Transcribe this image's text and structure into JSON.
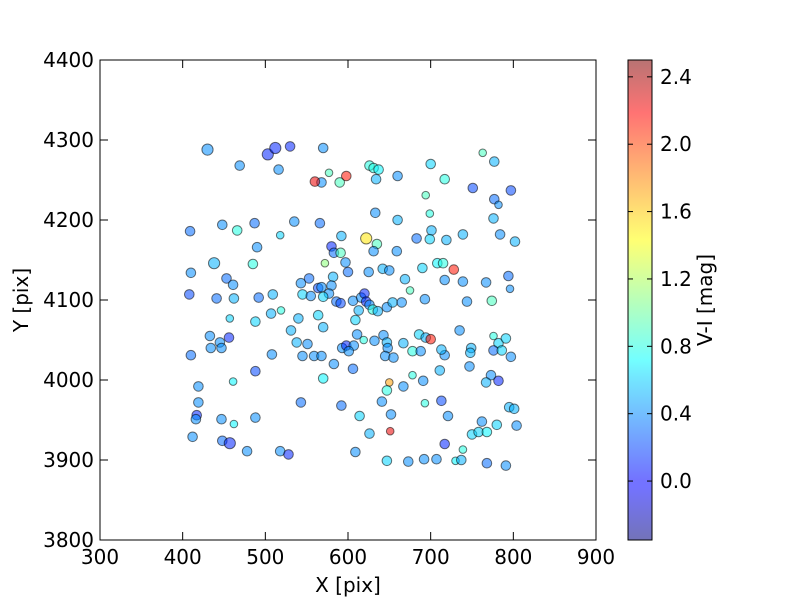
{
  "chart_data": {
    "type": "scatter",
    "title": "",
    "xlabel": "X [pix]",
    "ylabel": "Y [pix]",
    "xlim": [
      300,
      900
    ],
    "ylim": [
      3800,
      4400
    ],
    "xticks": [
      300,
      400,
      500,
      600,
      700,
      800,
      900
    ],
    "yticks": [
      3800,
      3900,
      4000,
      4100,
      4200,
      4300,
      4400
    ],
    "colorbar": {
      "label": "V-I [mag]",
      "range": [
        -0.35,
        2.5
      ],
      "ticks": [
        0.0,
        0.4,
        0.8,
        1.2,
        1.6,
        2.0,
        2.4
      ],
      "tick_labels": [
        "0.0",
        "0.4",
        "0.8",
        "1.2",
        "1.6",
        "2.0",
        "2.4"
      ],
      "colormap": "jet",
      "alpha": 0.55
    },
    "grid": false,
    "points": [
      {
        "x": 430,
        "y": 4288,
        "c": 0.4,
        "s": "l"
      },
      {
        "x": 469,
        "y": 4268,
        "c": 0.4,
        "s": "m"
      },
      {
        "x": 503,
        "y": 4282,
        "c": 0.1,
        "s": "l"
      },
      {
        "x": 512,
        "y": 4290,
        "c": 0.1,
        "s": "l"
      },
      {
        "x": 530,
        "y": 4292,
        "c": 0.1,
        "s": "m"
      },
      {
        "x": 516,
        "y": 4263,
        "c": 0.4,
        "s": "m"
      },
      {
        "x": 570,
        "y": 4290,
        "c": 0.4,
        "s": "m"
      },
      {
        "x": 568,
        "y": 4247,
        "c": 0.4,
        "s": "m"
      },
      {
        "x": 560,
        "y": 4248,
        "c": 2.2,
        "s": "m"
      },
      {
        "x": 577,
        "y": 4259,
        "c": 0.9,
        "s": "s"
      },
      {
        "x": 590,
        "y": 4247,
        "c": 0.9,
        "s": "m"
      },
      {
        "x": 598,
        "y": 4255,
        "c": 2.1,
        "s": "m"
      },
      {
        "x": 626,
        "y": 4268,
        "c": 0.8,
        "s": "m"
      },
      {
        "x": 631,
        "y": 4265,
        "c": 0.8,
        "s": "m"
      },
      {
        "x": 637,
        "y": 4263,
        "c": 0.7,
        "s": "m"
      },
      {
        "x": 634,
        "y": 4251,
        "c": 0.5,
        "s": "m"
      },
      {
        "x": 660,
        "y": 4255,
        "c": 0.4,
        "s": "m"
      },
      {
        "x": 700,
        "y": 4270,
        "c": 0.6,
        "s": "m"
      },
      {
        "x": 717,
        "y": 4251,
        "c": 0.8,
        "s": "m"
      },
      {
        "x": 763,
        "y": 4284,
        "c": 0.9,
        "s": "s"
      },
      {
        "x": 777,
        "y": 4273,
        "c": 0.5,
        "s": "m"
      },
      {
        "x": 751,
        "y": 4240,
        "c": 0.2,
        "s": "m"
      },
      {
        "x": 777,
        "y": 4226,
        "c": 0.3,
        "s": "m"
      },
      {
        "x": 782,
        "y": 4219,
        "c": 0.4,
        "s": "s"
      },
      {
        "x": 797,
        "y": 4237,
        "c": 0.2,
        "s": "m"
      },
      {
        "x": 694,
        "y": 4231,
        "c": 0.9,
        "s": "s"
      },
      {
        "x": 699,
        "y": 4208,
        "c": 0.8,
        "s": "s"
      },
      {
        "x": 776,
        "y": 4202,
        "c": 0.5,
        "s": "m"
      },
      {
        "x": 409,
        "y": 4186,
        "c": 0.3,
        "s": "m"
      },
      {
        "x": 448,
        "y": 4194,
        "c": 0.4,
        "s": "m"
      },
      {
        "x": 466,
        "y": 4187,
        "c": 0.8,
        "s": "m"
      },
      {
        "x": 487,
        "y": 4196,
        "c": 0.3,
        "s": "m"
      },
      {
        "x": 518,
        "y": 4181,
        "c": 0.6,
        "s": "s"
      },
      {
        "x": 535,
        "y": 4198,
        "c": 0.4,
        "s": "m"
      },
      {
        "x": 566,
        "y": 4196,
        "c": 0.3,
        "s": "m"
      },
      {
        "x": 592,
        "y": 4180,
        "c": 0.5,
        "s": "m"
      },
      {
        "x": 633,
        "y": 4209,
        "c": 0.4,
        "s": "m"
      },
      {
        "x": 660,
        "y": 4200,
        "c": 0.5,
        "s": "m"
      },
      {
        "x": 622,
        "y": 4177,
        "c": 1.5,
        "s": "l"
      },
      {
        "x": 635,
        "y": 4170,
        "c": 0.9,
        "s": "m"
      },
      {
        "x": 631,
        "y": 4161,
        "c": 0.4,
        "s": "m"
      },
      {
        "x": 659,
        "y": 4161,
        "c": 0.4,
        "s": "m"
      },
      {
        "x": 683,
        "y": 4177,
        "c": 0.3,
        "s": "m"
      },
      {
        "x": 701,
        "y": 4187,
        "c": 0.5,
        "s": "m"
      },
      {
        "x": 699,
        "y": 4176,
        "c": 0.6,
        "s": "m"
      },
      {
        "x": 719,
        "y": 4175,
        "c": 0.5,
        "s": "m"
      },
      {
        "x": 739,
        "y": 4182,
        "c": 0.5,
        "s": "m"
      },
      {
        "x": 784,
        "y": 4182,
        "c": 0.4,
        "s": "m"
      },
      {
        "x": 802,
        "y": 4173,
        "c": 0.5,
        "s": "m"
      },
      {
        "x": 490,
        "y": 4166,
        "c": 0.4,
        "s": "m"
      },
      {
        "x": 580,
        "y": 4167,
        "c": 0.1,
        "s": "m"
      },
      {
        "x": 583,
        "y": 4159,
        "c": 0.3,
        "s": "m"
      },
      {
        "x": 591,
        "y": 4159,
        "c": 0.9,
        "s": "m"
      },
      {
        "x": 597,
        "y": 4147,
        "c": 0.4,
        "s": "m"
      },
      {
        "x": 572,
        "y": 4146,
        "c": 1.1,
        "s": "s"
      },
      {
        "x": 438,
        "y": 4146,
        "c": 0.5,
        "s": "l"
      },
      {
        "x": 485,
        "y": 4145,
        "c": 0.8,
        "s": "m"
      },
      {
        "x": 410,
        "y": 4134,
        "c": 0.4,
        "s": "m"
      },
      {
        "x": 453,
        "y": 4127,
        "c": 0.3,
        "s": "m"
      },
      {
        "x": 461,
        "y": 4119,
        "c": 0.4,
        "s": "m"
      },
      {
        "x": 543,
        "y": 4121,
        "c": 0.4,
        "s": "m"
      },
      {
        "x": 553,
        "y": 4127,
        "c": 0.3,
        "s": "m"
      },
      {
        "x": 564,
        "y": 4115,
        "c": 0.2,
        "s": "m"
      },
      {
        "x": 568,
        "y": 4116,
        "c": 0.4,
        "s": "m"
      },
      {
        "x": 582,
        "y": 4129,
        "c": 0.5,
        "s": "m"
      },
      {
        "x": 580,
        "y": 4118,
        "c": 0.4,
        "s": "m"
      },
      {
        "x": 577,
        "y": 4108,
        "c": 0.4,
        "s": "m"
      },
      {
        "x": 600,
        "y": 4135,
        "c": 0.3,
        "s": "m"
      },
      {
        "x": 625,
        "y": 4135,
        "c": 0.4,
        "s": "m"
      },
      {
        "x": 642,
        "y": 4139,
        "c": 0.5,
        "s": "m"
      },
      {
        "x": 650,
        "y": 4137,
        "c": 0.4,
        "s": "m"
      },
      {
        "x": 669,
        "y": 4126,
        "c": 0.5,
        "s": "m"
      },
      {
        "x": 690,
        "y": 4140,
        "c": 0.6,
        "s": "m"
      },
      {
        "x": 708,
        "y": 4146,
        "c": 0.7,
        "s": "m"
      },
      {
        "x": 715,
        "y": 4146,
        "c": 0.8,
        "s": "m"
      },
      {
        "x": 728,
        "y": 4138,
        "c": 2.1,
        "s": "m"
      },
      {
        "x": 717,
        "y": 4125,
        "c": 0.4,
        "s": "m"
      },
      {
        "x": 739,
        "y": 4123,
        "c": 0.4,
        "s": "m"
      },
      {
        "x": 767,
        "y": 4122,
        "c": 0.4,
        "s": "m"
      },
      {
        "x": 794,
        "y": 4130,
        "c": 0.3,
        "s": "m"
      },
      {
        "x": 796,
        "y": 4114,
        "c": 0.4,
        "s": "s"
      },
      {
        "x": 675,
        "y": 4112,
        "c": 0.9,
        "s": "s"
      },
      {
        "x": 408,
        "y": 4107,
        "c": 0.2,
        "s": "m"
      },
      {
        "x": 441,
        "y": 4102,
        "c": 0.3,
        "s": "m"
      },
      {
        "x": 462,
        "y": 4102,
        "c": 0.5,
        "s": "m"
      },
      {
        "x": 492,
        "y": 4103,
        "c": 0.3,
        "s": "m"
      },
      {
        "x": 509,
        "y": 4107,
        "c": 0.5,
        "s": "m"
      },
      {
        "x": 545,
        "y": 4107,
        "c": 0.6,
        "s": "m"
      },
      {
        "x": 555,
        "y": 4105,
        "c": 0.4,
        "s": "m"
      },
      {
        "x": 570,
        "y": 4104,
        "c": 0.6,
        "s": "m"
      },
      {
        "x": 586,
        "y": 4098,
        "c": 0.3,
        "s": "m"
      },
      {
        "x": 591,
        "y": 4096,
        "c": 0.2,
        "s": "m"
      },
      {
        "x": 606,
        "y": 4099,
        "c": 0.4,
        "s": "m"
      },
      {
        "x": 616,
        "y": 4103,
        "c": 0.4,
        "s": "m"
      },
      {
        "x": 620,
        "y": 4108,
        "c": 0.1,
        "s": "m"
      },
      {
        "x": 622,
        "y": 4098,
        "c": 0.1,
        "s": "m"
      },
      {
        "x": 626,
        "y": 4094,
        "c": 0.4,
        "s": "m"
      },
      {
        "x": 630,
        "y": 4088,
        "c": 0.8,
        "s": "m"
      },
      {
        "x": 636,
        "y": 4086,
        "c": 0.5,
        "s": "m"
      },
      {
        "x": 647,
        "y": 4091,
        "c": 0.4,
        "s": "m"
      },
      {
        "x": 654,
        "y": 4097,
        "c": 0.5,
        "s": "m"
      },
      {
        "x": 665,
        "y": 4097,
        "c": 0.4,
        "s": "m"
      },
      {
        "x": 693,
        "y": 4101,
        "c": 0.4,
        "s": "m"
      },
      {
        "x": 744,
        "y": 4098,
        "c": 0.4,
        "s": "m"
      },
      {
        "x": 774,
        "y": 4099,
        "c": 0.9,
        "s": "m"
      },
      {
        "x": 457,
        "y": 4077,
        "c": 0.6,
        "s": "s"
      },
      {
        "x": 488,
        "y": 4073,
        "c": 0.6,
        "s": "m"
      },
      {
        "x": 507,
        "y": 4083,
        "c": 0.5,
        "s": "m"
      },
      {
        "x": 519,
        "y": 4087,
        "c": 0.8,
        "s": "s"
      },
      {
        "x": 540,
        "y": 4077,
        "c": 0.5,
        "s": "m"
      },
      {
        "x": 564,
        "y": 4081,
        "c": 0.6,
        "s": "m"
      },
      {
        "x": 570,
        "y": 4066,
        "c": 0.5,
        "s": "m"
      },
      {
        "x": 609,
        "y": 4075,
        "c": 0.6,
        "s": "m"
      },
      {
        "x": 611,
        "y": 4057,
        "c": 0.4,
        "s": "m"
      },
      {
        "x": 619,
        "y": 4050,
        "c": 0.8,
        "s": "s"
      },
      {
        "x": 613,
        "y": 4087,
        "c": 0.5,
        "s": "m"
      },
      {
        "x": 433,
        "y": 4055,
        "c": 0.4,
        "s": "m"
      },
      {
        "x": 456,
        "y": 4053,
        "c": 0.1,
        "s": "m"
      },
      {
        "x": 445,
        "y": 4047,
        "c": 0.4,
        "s": "m"
      },
      {
        "x": 447,
        "y": 4040,
        "c": 0.4,
        "s": "m"
      },
      {
        "x": 434,
        "y": 4040,
        "c": 0.4,
        "s": "m"
      },
      {
        "x": 410,
        "y": 4031,
        "c": 0.3,
        "s": "m"
      },
      {
        "x": 531,
        "y": 4062,
        "c": 0.5,
        "s": "m"
      },
      {
        "x": 538,
        "y": 4047,
        "c": 0.5,
        "s": "m"
      },
      {
        "x": 551,
        "y": 4045,
        "c": 0.4,
        "s": "m"
      },
      {
        "x": 545,
        "y": 4030,
        "c": 0.4,
        "s": "m"
      },
      {
        "x": 559,
        "y": 4030,
        "c": 0.4,
        "s": "m"
      },
      {
        "x": 568,
        "y": 4030,
        "c": 0.4,
        "s": "m"
      },
      {
        "x": 508,
        "y": 4032,
        "c": 0.4,
        "s": "m"
      },
      {
        "x": 593,
        "y": 4040,
        "c": 0.4,
        "s": "m"
      },
      {
        "x": 598,
        "y": 4043,
        "c": 0.1,
        "s": "m"
      },
      {
        "x": 607,
        "y": 4043,
        "c": 0.4,
        "s": "m"
      },
      {
        "x": 601,
        "y": 4036,
        "c": 0.4,
        "s": "m"
      },
      {
        "x": 632,
        "y": 4049,
        "c": 0.4,
        "s": "m"
      },
      {
        "x": 643,
        "y": 4056,
        "c": 0.4,
        "s": "m"
      },
      {
        "x": 647,
        "y": 4047,
        "c": 0.5,
        "s": "m"
      },
      {
        "x": 648,
        "y": 4040,
        "c": 0.4,
        "s": "m"
      },
      {
        "x": 667,
        "y": 4046,
        "c": 0.5,
        "s": "m"
      },
      {
        "x": 686,
        "y": 4057,
        "c": 0.6,
        "s": "m"
      },
      {
        "x": 694,
        "y": 4053,
        "c": 0.5,
        "s": "m"
      },
      {
        "x": 700,
        "y": 4051,
        "c": 2.1,
        "s": "m"
      },
      {
        "x": 678,
        "y": 4036,
        "c": 0.8,
        "s": "m"
      },
      {
        "x": 688,
        "y": 4036,
        "c": 0.4,
        "s": "m"
      },
      {
        "x": 645,
        "y": 4030,
        "c": 0.4,
        "s": "m"
      },
      {
        "x": 655,
        "y": 4028,
        "c": 0.4,
        "s": "m"
      },
      {
        "x": 717,
        "y": 4031,
        "c": 0.4,
        "s": "m"
      },
      {
        "x": 713,
        "y": 4038,
        "c": 0.5,
        "s": "m"
      },
      {
        "x": 735,
        "y": 4062,
        "c": 0.4,
        "s": "m"
      },
      {
        "x": 749,
        "y": 4040,
        "c": 0.5,
        "s": "m"
      },
      {
        "x": 748,
        "y": 4034,
        "c": 0.5,
        "s": "m"
      },
      {
        "x": 776,
        "y": 4055,
        "c": 0.8,
        "s": "s"
      },
      {
        "x": 782,
        "y": 4046,
        "c": 0.6,
        "s": "m"
      },
      {
        "x": 776,
        "y": 4037,
        "c": 0.3,
        "s": "m"
      },
      {
        "x": 786,
        "y": 4037,
        "c": 0.6,
        "s": "m"
      },
      {
        "x": 791,
        "y": 4052,
        "c": 0.6,
        "s": "m"
      },
      {
        "x": 797,
        "y": 4029,
        "c": 0.4,
        "s": "m"
      },
      {
        "x": 488,
        "y": 4011,
        "c": 0.2,
        "s": "m"
      },
      {
        "x": 583,
        "y": 4020,
        "c": 0.4,
        "s": "m"
      },
      {
        "x": 606,
        "y": 4014,
        "c": 0.3,
        "s": "m"
      },
      {
        "x": 570,
        "y": 4002,
        "c": 0.7,
        "s": "m"
      },
      {
        "x": 678,
        "y": 4006,
        "c": 0.8,
        "s": "s"
      },
      {
        "x": 711,
        "y": 4012,
        "c": 0.5,
        "s": "m"
      },
      {
        "x": 747,
        "y": 4017,
        "c": 0.4,
        "s": "m"
      },
      {
        "x": 773,
        "y": 4006,
        "c": 0.4,
        "s": "m"
      },
      {
        "x": 767,
        "y": 3997,
        "c": 0.5,
        "s": "m"
      },
      {
        "x": 782,
        "y": 3999,
        "c": 0.1,
        "s": "m"
      },
      {
        "x": 419,
        "y": 3992,
        "c": 0.4,
        "s": "m"
      },
      {
        "x": 461,
        "y": 3998,
        "c": 0.7,
        "s": "s"
      },
      {
        "x": 650,
        "y": 3997,
        "c": 1.7,
        "s": "s"
      },
      {
        "x": 647,
        "y": 3987,
        "c": 0.8,
        "s": "m"
      },
      {
        "x": 667,
        "y": 3992,
        "c": 0.4,
        "s": "m"
      },
      {
        "x": 691,
        "y": 3999,
        "c": 0.4,
        "s": "m"
      },
      {
        "x": 419,
        "y": 3972,
        "c": 0.4,
        "s": "m"
      },
      {
        "x": 543,
        "y": 3972,
        "c": 0.3,
        "s": "m"
      },
      {
        "x": 592,
        "y": 3968,
        "c": 0.3,
        "s": "m"
      },
      {
        "x": 641,
        "y": 3973,
        "c": 0.4,
        "s": "m"
      },
      {
        "x": 693,
        "y": 3971,
        "c": 0.8,
        "s": "s"
      },
      {
        "x": 713,
        "y": 3974,
        "c": 0.2,
        "s": "m"
      },
      {
        "x": 795,
        "y": 3966,
        "c": 0.5,
        "s": "m"
      },
      {
        "x": 801,
        "y": 3964,
        "c": 0.5,
        "s": "m"
      },
      {
        "x": 417,
        "y": 3956,
        "c": 0.1,
        "s": "m"
      },
      {
        "x": 416,
        "y": 3951,
        "c": 0.4,
        "s": "m"
      },
      {
        "x": 447,
        "y": 3951,
        "c": 0.4,
        "s": "m"
      },
      {
        "x": 462,
        "y": 3945,
        "c": 0.7,
        "s": "s"
      },
      {
        "x": 488,
        "y": 3953,
        "c": 0.4,
        "s": "m"
      },
      {
        "x": 614,
        "y": 3955,
        "c": 0.6,
        "s": "m"
      },
      {
        "x": 652,
        "y": 3957,
        "c": 0.4,
        "s": "m"
      },
      {
        "x": 721,
        "y": 3955,
        "c": 0.4,
        "s": "m"
      },
      {
        "x": 762,
        "y": 3948,
        "c": 0.4,
        "s": "m"
      },
      {
        "x": 780,
        "y": 3944,
        "c": 0.6,
        "s": "m"
      },
      {
        "x": 804,
        "y": 3943,
        "c": 0.4,
        "s": "m"
      },
      {
        "x": 412,
        "y": 3929,
        "c": 0.4,
        "s": "m"
      },
      {
        "x": 448,
        "y": 3924,
        "c": 0.3,
        "s": "m"
      },
      {
        "x": 457,
        "y": 3921,
        "c": 0.1,
        "s": "l"
      },
      {
        "x": 626,
        "y": 3933,
        "c": 0.5,
        "s": "m"
      },
      {
        "x": 651,
        "y": 3936,
        "c": 2.2,
        "s": "s"
      },
      {
        "x": 750,
        "y": 3932,
        "c": 0.6,
        "s": "m"
      },
      {
        "x": 758,
        "y": 3935,
        "c": 0.6,
        "s": "m"
      },
      {
        "x": 768,
        "y": 3935,
        "c": 0.7,
        "s": "m"
      },
      {
        "x": 717,
        "y": 3920,
        "c": 0.1,
        "s": "m"
      },
      {
        "x": 478,
        "y": 3911,
        "c": 0.4,
        "s": "m"
      },
      {
        "x": 518,
        "y": 3911,
        "c": 0.4,
        "s": "m"
      },
      {
        "x": 528,
        "y": 3907,
        "c": 0.1,
        "s": "m"
      },
      {
        "x": 609,
        "y": 3910,
        "c": 0.4,
        "s": "m"
      },
      {
        "x": 739,
        "y": 3913,
        "c": 0.8,
        "s": "s"
      },
      {
        "x": 647,
        "y": 3899,
        "c": 0.6,
        "s": "m"
      },
      {
        "x": 673,
        "y": 3898,
        "c": 0.4,
        "s": "m"
      },
      {
        "x": 692,
        "y": 3901,
        "c": 0.4,
        "s": "m"
      },
      {
        "x": 707,
        "y": 3901,
        "c": 0.4,
        "s": "m"
      },
      {
        "x": 730,
        "y": 3899,
        "c": 0.7,
        "s": "s"
      },
      {
        "x": 737,
        "y": 3900,
        "c": 0.5,
        "s": "m"
      },
      {
        "x": 768,
        "y": 3896,
        "c": 0.3,
        "s": "m"
      },
      {
        "x": 791,
        "y": 3893,
        "c": 0.4,
        "s": "m"
      }
    ]
  }
}
